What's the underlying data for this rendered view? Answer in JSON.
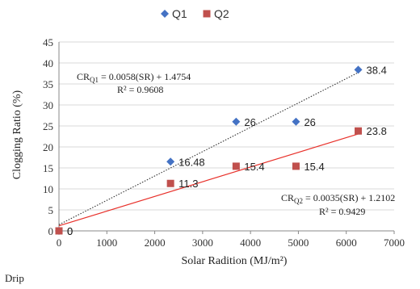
{
  "chart_data": {
    "type": "scatter",
    "x_range": [
      0,
      7000
    ],
    "y_range": [
      0,
      45
    ],
    "x_ticks": [
      "0",
      "1000",
      "2000",
      "3000",
      "4000",
      "5000",
      "6000",
      "7000"
    ],
    "y_ticks": [
      "0",
      "5",
      "10",
      "15",
      "20",
      "25",
      "30",
      "35",
      "40",
      "45"
    ],
    "xlabel": "Solar Radition (MJ/m²)",
    "ylabel": "Clogging Ratio (%)",
    "grid": "horizontal",
    "legend_position": "top",
    "series": [
      {
        "name": "Q1",
        "marker": "diamond",
        "color": "#4472c4",
        "points": [
          {
            "x": 0,
            "y": 0,
            "label": "0"
          },
          {
            "x": 2330,
            "y": 16.48,
            "label": "16.48"
          },
          {
            "x": 3700,
            "y": 26,
            "label": "26"
          },
          {
            "x": 4950,
            "y": 26,
            "label": "26"
          },
          {
            "x": 6250,
            "y": 38.4,
            "label": "38.4"
          }
        ],
        "trendline": {
          "slope": 0.0058,
          "intercept": 1.4754,
          "style": "dotted",
          "color": "#333333"
        },
        "equation": {
          "sub": "Q1",
          "text": " = 0.0058(SR) + 1.4754",
          "r2": "R² = 0.9608"
        }
      },
      {
        "name": "Q2",
        "marker": "square",
        "color": "#c0504d",
        "points": [
          {
            "x": 0,
            "y": 0,
            "label": "0"
          },
          {
            "x": 2330,
            "y": 11.3,
            "label": "11.3"
          },
          {
            "x": 3700,
            "y": 15.4,
            "label": "15.4"
          },
          {
            "x": 4950,
            "y": 15.4,
            "label": "15.4"
          },
          {
            "x": 6250,
            "y": 23.8,
            "label": "23.8"
          }
        ],
        "trendline": {
          "slope": 0.0035,
          "intercept": 1.2102,
          "style": "solid",
          "color": "#e8302a"
        },
        "equation": {
          "sub": "Q2",
          "text": " = 0.0035(SR) + 1.2102",
          "r2": "R² = 0.9429"
        }
      }
    ]
  },
  "equation_prefix": "CR",
  "footer": "Drip"
}
